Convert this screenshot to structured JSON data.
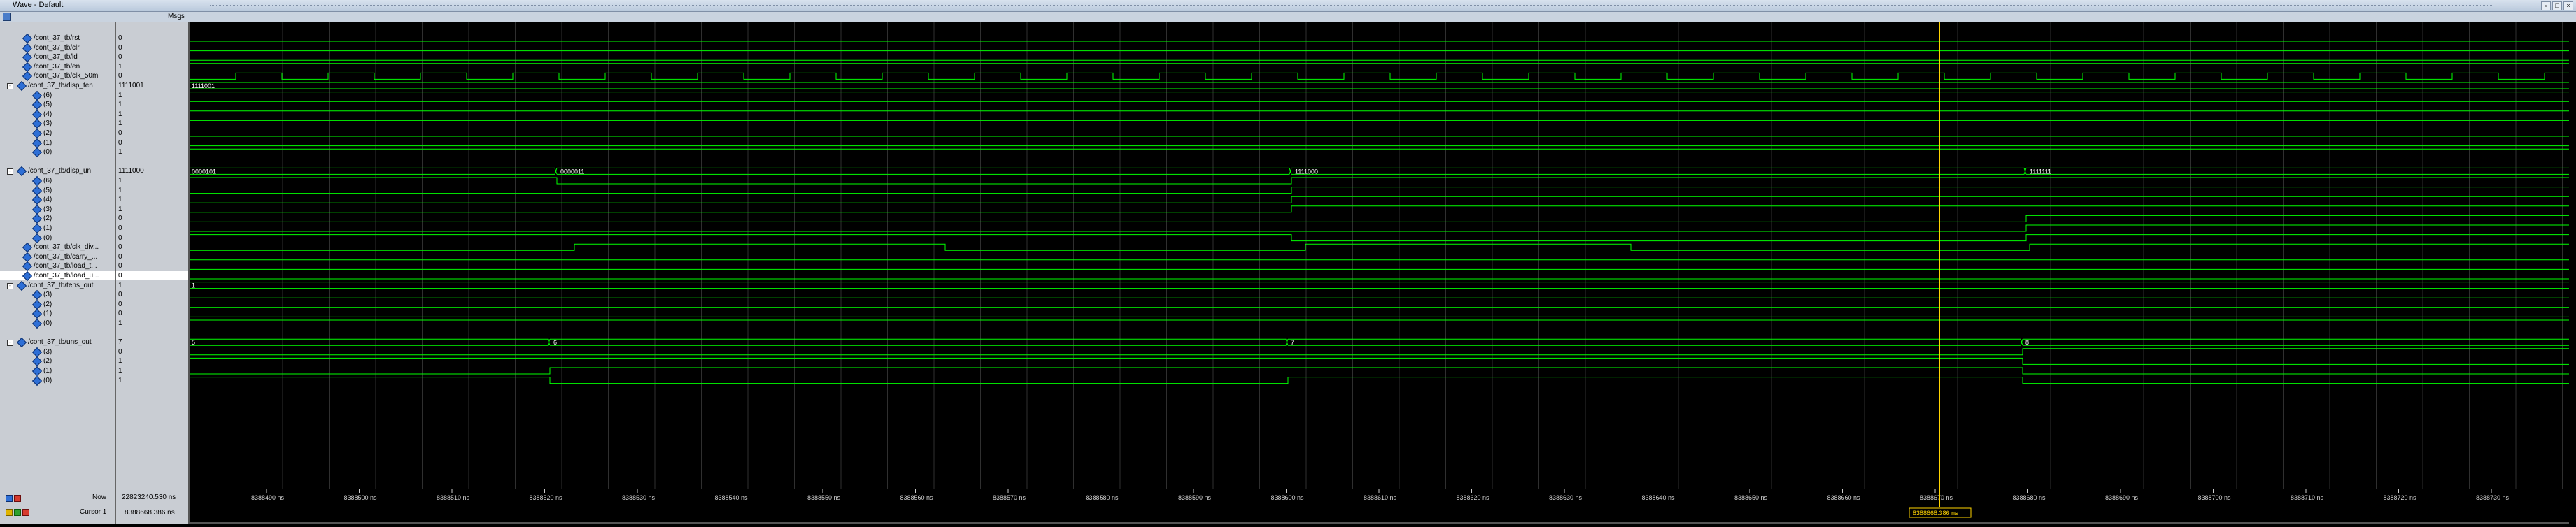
{
  "window": {
    "title": "Wave - Default"
  },
  "toolbar": {
    "msgs_label": "Msgs"
  },
  "colors": {
    "wave": "#00ff00",
    "cursor": "#ffd400",
    "grid": "#2f2f2f",
    "bg": "#000000"
  },
  "signals": [
    {
      "name": "/cont_37_tb/rst",
      "value": "0",
      "indent": 1,
      "expand": ""
    },
    {
      "name": "/cont_37_tb/clr",
      "value": "0",
      "indent": 1,
      "expand": ""
    },
    {
      "name": "/cont_37_tb/ld",
      "value": "0",
      "indent": 1,
      "expand": ""
    },
    {
      "name": "/cont_37_tb/en",
      "value": "1",
      "indent": 1,
      "expand": ""
    },
    {
      "name": "/cont_37_tb/clk_50m",
      "value": "0",
      "indent": 1,
      "expand": ""
    },
    {
      "name": "/cont_37_tb/disp_ten",
      "value": "1111001",
      "indent": 0,
      "expand": "-"
    },
    {
      "name": "(6)",
      "value": "1",
      "indent": 2,
      "expand": ""
    },
    {
      "name": "(5)",
      "value": "1",
      "indent": 2,
      "expand": ""
    },
    {
      "name": "(4)",
      "value": "1",
      "indent": 2,
      "expand": ""
    },
    {
      "name": "(3)",
      "value": "1",
      "indent": 2,
      "expand": ""
    },
    {
      "name": "(2)",
      "value": "0",
      "indent": 2,
      "expand": ""
    },
    {
      "name": "(1)",
      "value": "0",
      "indent": 2,
      "expand": ""
    },
    {
      "name": "(0)",
      "value": "1",
      "indent": 2,
      "expand": ""
    },
    {
      "name": "",
      "value": "",
      "indent": 0,
      "expand": ""
    },
    {
      "name": "/cont_37_tb/disp_un",
      "value": "1111000",
      "indent": 0,
      "expand": "-"
    },
    {
      "name": "(6)",
      "value": "1",
      "indent": 2,
      "expand": ""
    },
    {
      "name": "(5)",
      "value": "1",
      "indent": 2,
      "expand": ""
    },
    {
      "name": "(4)",
      "value": "1",
      "indent": 2,
      "expand": ""
    },
    {
      "name": "(3)",
      "value": "1",
      "indent": 2,
      "expand": ""
    },
    {
      "name": "(2)",
      "value": "0",
      "indent": 2,
      "expand": ""
    },
    {
      "name": "(1)",
      "value": "0",
      "indent": 2,
      "expand": ""
    },
    {
      "name": "(0)",
      "value": "0",
      "indent": 2,
      "expand": ""
    },
    {
      "name": "/cont_37_tb/clk_div...",
      "value": "0",
      "indent": 1,
      "expand": ""
    },
    {
      "name": "/cont_37_tb/carry_...",
      "value": "0",
      "indent": 1,
      "expand": ""
    },
    {
      "name": "/cont_37_tb/load_t...",
      "value": "0",
      "indent": 1,
      "expand": ""
    },
    {
      "name": "/cont_37_tb/load_u...",
      "value": "0",
      "indent": 1,
      "expand": "",
      "selected": true
    },
    {
      "name": "/cont_37_tb/tens_out",
      "value": "1",
      "indent": 0,
      "expand": "-"
    },
    {
      "name": "(3)",
      "value": "0",
      "indent": 2,
      "expand": ""
    },
    {
      "name": "(2)",
      "value": "0",
      "indent": 2,
      "expand": ""
    },
    {
      "name": "(1)",
      "value": "0",
      "indent": 2,
      "expand": ""
    },
    {
      "name": "(0)",
      "value": "1",
      "indent": 2,
      "expand": ""
    },
    {
      "name": "",
      "value": "",
      "indent": 0,
      "expand": ""
    },
    {
      "name": "/cont_37_tb/uns_out",
      "value": "7",
      "indent": 0,
      "expand": "-"
    },
    {
      "name": "(3)",
      "value": "0",
      "indent": 2,
      "expand": ""
    },
    {
      "name": "(2)",
      "value": "1",
      "indent": 2,
      "expand": ""
    },
    {
      "name": "(1)",
      "value": "1",
      "indent": 2,
      "expand": ""
    },
    {
      "name": "(0)",
      "value": "1",
      "indent": 2,
      "expand": ""
    }
  ],
  "bus_labels": {
    "disp_ten": [
      "1111001"
    ],
    "disp_un": [
      "0000101",
      "0000011",
      "1111000",
      "1111111"
    ],
    "tens_out": [
      "1"
    ],
    "uns_out": [
      "5",
      "6",
      "7",
      "8"
    ]
  },
  "status": {
    "now_label": "Now",
    "now_value": "22823240.530 ns",
    "cursor_label": "Cursor 1",
    "cursor_value": "8388668.386 ns",
    "cursor_flag": "8388668.386 ns"
  },
  "timeline_ticks": [
    "8388490 ns",
    "8388500 ns",
    "8388510 ns",
    "8388520 ns",
    "8388530 ns",
    "8388540 ns",
    "8388550 ns",
    "8388560 ns",
    "8388570 ns",
    "8388580 ns",
    "8388590 ns",
    "8388600 ns",
    "8388610 ns",
    "8388620 ns",
    "8388630 ns",
    "8388640 ns",
    "8388650 ns",
    "8388660 ns",
    "8388670 ns",
    "8388680 ns",
    "8388690 ns",
    "8388700 ns",
    "8388710 ns",
    "8388720 ns",
    "8388730 ns"
  ]
}
